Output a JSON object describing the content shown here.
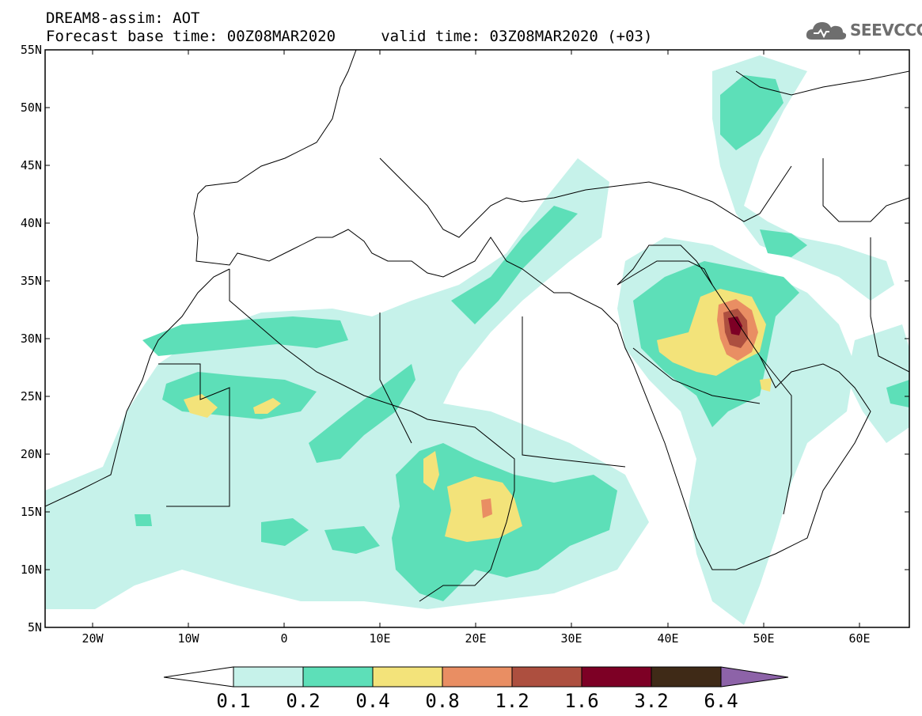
{
  "header": {
    "title_line1": "DREAM8-assim: AOT",
    "title_line2": "Forecast base time: 00Z08MAR2020     valid time: 03Z08MAR2020 (+03)"
  },
  "logo": {
    "text": "SEEVCCC",
    "color": "#6e6e6e"
  },
  "map": {
    "projection": "latitude-longitude",
    "lon_range": [
      -25,
      65
    ],
    "lat_range": [
      5,
      55
    ],
    "lat_ticks": [
      "55N",
      "50N",
      "45N",
      "40N",
      "35N",
      "30N",
      "25N",
      "20N",
      "15N",
      "10N",
      "5N"
    ],
    "lon_ticks": [
      "20W",
      "10W",
      "0",
      "10E",
      "20E",
      "30E",
      "40E",
      "50E",
      "60E"
    ],
    "variable": "AOT"
  },
  "colorbar": {
    "labels": [
      "0.1",
      "0.2",
      "0.4",
      "0.8",
      "1.2",
      "1.6",
      "3.2",
      "6.4"
    ],
    "colors": [
      "#ffffff",
      "#c6f2ea",
      "#5ddfb8",
      "#f3e37a",
      "#e98e63",
      "#ad4f3f",
      "#7d0025",
      "#3f2a17",
      "#8d63a8"
    ]
  }
}
